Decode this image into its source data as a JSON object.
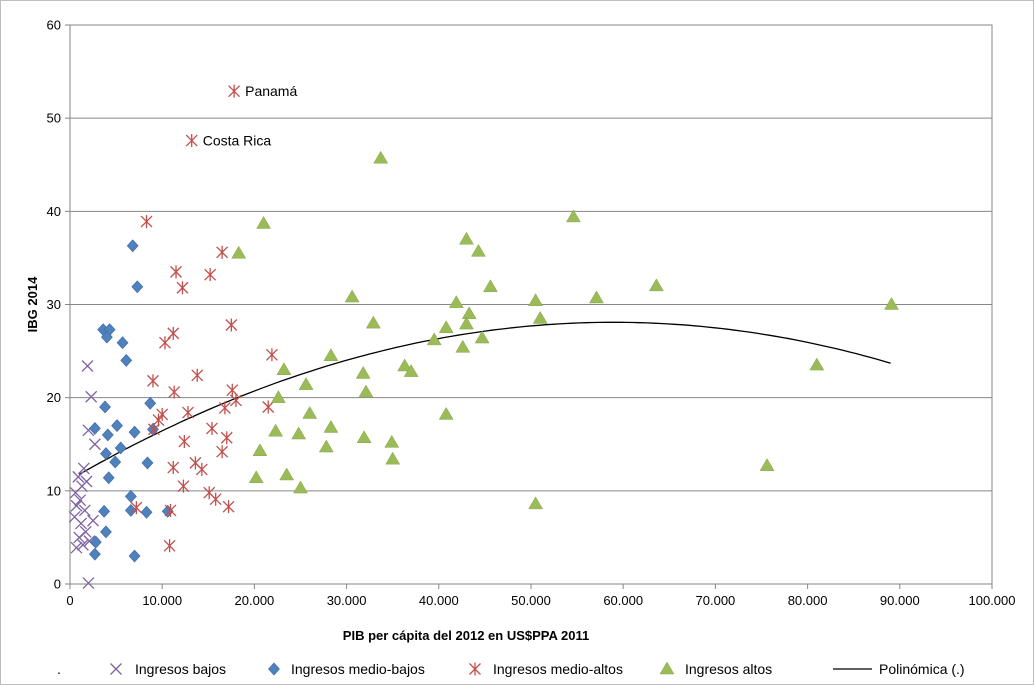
{
  "colors": {
    "bajos": "#8064A2",
    "medio_bajos": "#4F81BD",
    "medio_altos": "#C0504D",
    "altos": "#9BBB59",
    "trend": "#000000",
    "grid": "#868686"
  },
  "chart_data": {
    "type": "scatter",
    "xlabel": "PIB per cápita del 2012 en US$PPA 2011",
    "ylabel": "IBG 2014",
    "xlim": [
      0,
      100000
    ],
    "ylim": [
      0,
      60
    ],
    "x_ticks": [
      "0",
      "10.000",
      "20.000",
      "30.000",
      "40.000",
      "50.000",
      "60.000",
      "70.000",
      "80.000",
      "90.000",
      "100.000"
    ],
    "y_ticks": [
      "0",
      "10",
      "20",
      "30",
      "40",
      "50",
      "60"
    ],
    "grid": "horizontal",
    "legend_position": "bottom",
    "legend_extra": ".",
    "series": [
      {
        "name": "Ingresos bajos",
        "marker": "x",
        "color": "#8064A2",
        "points": [
          [
            1900,
            23.4
          ],
          [
            2300,
            20.1
          ],
          [
            2000,
            16.5
          ],
          [
            2700,
            15.0
          ],
          [
            1500,
            12.4
          ],
          [
            900,
            11.5
          ],
          [
            1800,
            11.0
          ],
          [
            1300,
            10.5
          ],
          [
            600,
            9.8
          ],
          [
            1100,
            9.0
          ],
          [
            700,
            8.4
          ],
          [
            1600,
            7.9
          ],
          [
            500,
            7.2
          ],
          [
            1200,
            6.5
          ],
          [
            2500,
            6.8
          ],
          [
            1700,
            5.6
          ],
          [
            1000,
            5.0
          ],
          [
            2100,
            4.6
          ],
          [
            1400,
            4.2
          ],
          [
            700,
            3.9
          ],
          [
            2000,
            0.1
          ]
        ]
      },
      {
        "name": "Ingresos medio-bajos",
        "marker": "diamond",
        "color": "#4F81BD",
        "points": [
          [
            6800,
            36.3
          ],
          [
            7300,
            31.9
          ],
          [
            3600,
            27.3
          ],
          [
            4300,
            27.3
          ],
          [
            4000,
            26.5
          ],
          [
            5700,
            25.9
          ],
          [
            6100,
            24.0
          ],
          [
            3800,
            19.0
          ],
          [
            8700,
            19.4
          ],
          [
            4100,
            16.0
          ],
          [
            5100,
            17.0
          ],
          [
            2700,
            16.7
          ],
          [
            9000,
            16.6
          ],
          [
            7000,
            16.3
          ],
          [
            5500,
            14.6
          ],
          [
            3900,
            14.0
          ],
          [
            4900,
            13.1
          ],
          [
            8400,
            13.0
          ],
          [
            4200,
            11.4
          ],
          [
            6600,
            9.4
          ],
          [
            3700,
            7.8
          ],
          [
            6600,
            7.9
          ],
          [
            8300,
            7.7
          ],
          [
            10600,
            7.8
          ],
          [
            3900,
            5.6
          ],
          [
            2800,
            4.5
          ],
          [
            2700,
            3.2
          ],
          [
            7000,
            3.0
          ]
        ]
      },
      {
        "name": "Ingresos medio-altos",
        "marker": "asterisk",
        "color": "#C0504D",
        "points": [
          [
            17800,
            52.9
          ],
          [
            13200,
            47.6
          ],
          [
            8300,
            38.9
          ],
          [
            16500,
            35.6
          ],
          [
            11500,
            33.5
          ],
          [
            15200,
            33.2
          ],
          [
            12200,
            31.8
          ],
          [
            11200,
            26.9
          ],
          [
            17500,
            27.8
          ],
          [
            10300,
            25.9
          ],
          [
            21900,
            24.6
          ],
          [
            13800,
            22.4
          ],
          [
            9000,
            21.8
          ],
          [
            11300,
            20.6
          ],
          [
            17600,
            20.8
          ],
          [
            21500,
            19.0
          ],
          [
            18000,
            19.7
          ],
          [
            12800,
            18.4
          ],
          [
            10000,
            18.2
          ],
          [
            9600,
            17.6
          ],
          [
            16800,
            18.9
          ],
          [
            15400,
            16.7
          ],
          [
            9100,
            16.6
          ],
          [
            12400,
            15.3
          ],
          [
            17000,
            15.7
          ],
          [
            16500,
            14.2
          ],
          [
            13600,
            13.0
          ],
          [
            11200,
            12.5
          ],
          [
            14300,
            12.3
          ],
          [
            12300,
            10.5
          ],
          [
            15100,
            9.8
          ],
          [
            15800,
            9.1
          ],
          [
            17200,
            8.3
          ],
          [
            7200,
            8.2
          ],
          [
            10900,
            7.9
          ],
          [
            10800,
            4.1
          ]
        ]
      },
      {
        "name": "Ingresos altos",
        "marker": "triangle",
        "color": "#9BBB59",
        "points": [
          [
            33700,
            45.7
          ],
          [
            54600,
            39.4
          ],
          [
            21000,
            38.7
          ],
          [
            43000,
            37.0
          ],
          [
            44300,
            35.7
          ],
          [
            18300,
            35.5
          ],
          [
            63600,
            32.0
          ],
          [
            45600,
            31.9
          ],
          [
            30600,
            30.8
          ],
          [
            57100,
            30.7
          ],
          [
            50500,
            30.4
          ],
          [
            41900,
            30.2
          ],
          [
            89100,
            30.0
          ],
          [
            43300,
            29.0
          ],
          [
            51000,
            28.5
          ],
          [
            32900,
            28.0
          ],
          [
            43000,
            27.9
          ],
          [
            40800,
            27.5
          ],
          [
            39500,
            26.2
          ],
          [
            44700,
            26.4
          ],
          [
            42600,
            25.4
          ],
          [
            28300,
            24.5
          ],
          [
            36300,
            23.4
          ],
          [
            81000,
            23.5
          ],
          [
            37000,
            22.8
          ],
          [
            23200,
            23.0
          ],
          [
            31800,
            22.6
          ],
          [
            25600,
            21.4
          ],
          [
            32100,
            20.6
          ],
          [
            22600,
            20.0
          ],
          [
            40800,
            18.2
          ],
          [
            26000,
            18.3
          ],
          [
            28300,
            16.8
          ],
          [
            22300,
            16.4
          ],
          [
            24800,
            16.1
          ],
          [
            31900,
            15.7
          ],
          [
            34900,
            15.2
          ],
          [
            20600,
            14.3
          ],
          [
            27800,
            14.7
          ],
          [
            35000,
            13.4
          ],
          [
            75600,
            12.7
          ],
          [
            23500,
            11.7
          ],
          [
            20200,
            11.4
          ],
          [
            25000,
            10.3
          ],
          [
            50500,
            8.6
          ]
        ]
      }
    ],
    "trend": {
      "name": "Polinómica (.)",
      "type": "polynomial-2",
      "x_range": [
        1000,
        89000
      ],
      "coefficients": [
        11.2,
        0.000573,
        -4.86e-09
      ]
    },
    "annotations": [
      {
        "text": "Panamá",
        "x": 17800,
        "y": 52.9
      },
      {
        "text": "Costa Rica",
        "x": 13200,
        "y": 47.6
      }
    ]
  }
}
